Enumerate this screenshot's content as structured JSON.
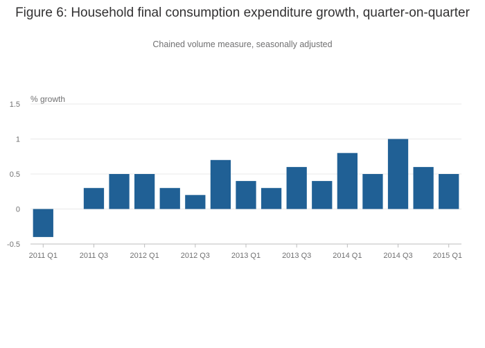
{
  "title": "Figure 6: Household final consumption expenditure growth, quarter-on-quarter",
  "subtitle": "Chained volume measure, seasonally adjusted",
  "chart_data": {
    "type": "bar",
    "title": "Figure 6: Household final consumption expenditure growth, quarter-on-quarter",
    "subtitle": "Chained volume measure, seasonally adjusted",
    "ylabel": "% growth",
    "xlabel": "",
    "categories": [
      "2011 Q1",
      "2011 Q2",
      "2011 Q3",
      "2011 Q4",
      "2012 Q1",
      "2012 Q2",
      "2012 Q3",
      "2012 Q4",
      "2013 Q1",
      "2013 Q2",
      "2013 Q3",
      "2013 Q4",
      "2014 Q1",
      "2014 Q2",
      "2014 Q3",
      "2014 Q4",
      "2015 Q1"
    ],
    "values": [
      -0.4,
      0.0,
      0.3,
      0.5,
      0.5,
      0.3,
      0.2,
      0.7,
      0.4,
      0.3,
      0.6,
      0.4,
      0.8,
      0.5,
      1.0,
      0.6,
      0.5
    ],
    "x_tick_labels": [
      "2011 Q1",
      "2011 Q3",
      "2012 Q1",
      "2012 Q3",
      "2013 Q1",
      "2013 Q3",
      "2014 Q1",
      "2014 Q3",
      "2015 Q1"
    ],
    "y_ticks": [
      -0.5,
      0,
      0.5,
      1,
      1.5
    ],
    "y_tick_labels": [
      "-0.5",
      "0",
      "0.5",
      "1",
      "1.5"
    ],
    "ylim": [
      -0.5,
      1.5
    ],
    "grid": true,
    "bar_color": "#206095",
    "grid_color": "#e8e8e8",
    "axis_color": "#bcbcbd"
  }
}
